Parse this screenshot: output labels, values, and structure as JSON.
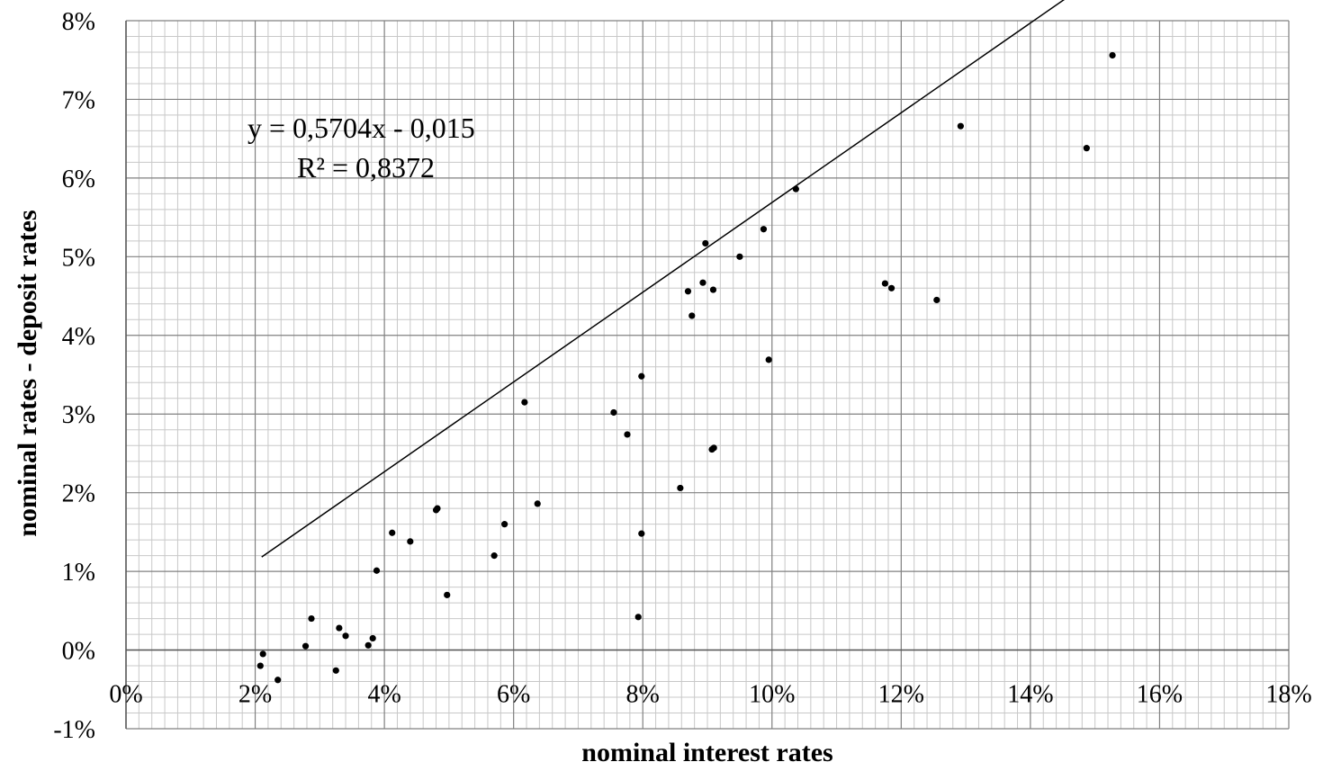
{
  "chart_data": {
    "type": "scatter",
    "title": "",
    "xlabel": "nominal interest rates",
    "ylabel": "nominal rates - deposit rates",
    "xlim": [
      0,
      18
    ],
    "ylim": [
      -1,
      8
    ],
    "x_ticks": [
      "0%",
      "2%",
      "4%",
      "6%",
      "8%",
      "10%",
      "12%",
      "14%",
      "16%",
      "18%"
    ],
    "y_ticks": [
      "8%",
      "7%",
      "6%",
      "5%",
      "4%",
      "3%",
      "2%",
      "1%",
      "0%",
      "-1%"
    ],
    "grid": "major and minor",
    "series": [
      {
        "points": [
          [
            2.08,
            -0.2
          ],
          [
            2.12,
            -0.05
          ],
          [
            2.35,
            -0.38
          ],
          [
            2.78,
            0.05
          ],
          [
            2.87,
            0.4
          ],
          [
            3.25,
            -0.26
          ],
          [
            3.3,
            0.28
          ],
          [
            3.4,
            0.18
          ],
          [
            3.75,
            0.06
          ],
          [
            3.82,
            0.15
          ],
          [
            3.88,
            1.01
          ],
          [
            4.12,
            1.49
          ],
          [
            4.4,
            1.38
          ],
          [
            4.8,
            1.78
          ],
          [
            4.82,
            1.8
          ],
          [
            4.97,
            0.7
          ],
          [
            5.7,
            1.2
          ],
          [
            5.86,
            1.6
          ],
          [
            6.17,
            3.15
          ],
          [
            6.37,
            1.86
          ],
          [
            7.55,
            3.02
          ],
          [
            7.76,
            2.74
          ],
          [
            7.93,
            0.42
          ],
          [
            7.98,
            3.48
          ],
          [
            7.98,
            1.48
          ],
          [
            8.58,
            2.06
          ],
          [
            8.7,
            4.56
          ],
          [
            8.76,
            4.25
          ],
          [
            8.93,
            4.67
          ],
          [
            8.97,
            5.17
          ],
          [
            9.07,
            2.55
          ],
          [
            9.09,
            4.58
          ],
          [
            9.1,
            2.57
          ],
          [
            9.5,
            5.0
          ],
          [
            9.87,
            5.35
          ],
          [
            9.95,
            3.69
          ],
          [
            10.37,
            5.86
          ],
          [
            11.75,
            4.66
          ],
          [
            11.85,
            4.6
          ],
          [
            12.55,
            4.45
          ],
          [
            12.92,
            6.66
          ],
          [
            14.87,
            6.38
          ],
          [
            15.27,
            7.56
          ]
        ]
      }
    ],
    "trendline": {
      "slope": 0.5704,
      "intercept": -0.015,
      "x_range": [
        2.1,
        15.25
      ],
      "equation": "y = 0,5704x - 0,015",
      "r2": "R² = 0,8372"
    }
  }
}
